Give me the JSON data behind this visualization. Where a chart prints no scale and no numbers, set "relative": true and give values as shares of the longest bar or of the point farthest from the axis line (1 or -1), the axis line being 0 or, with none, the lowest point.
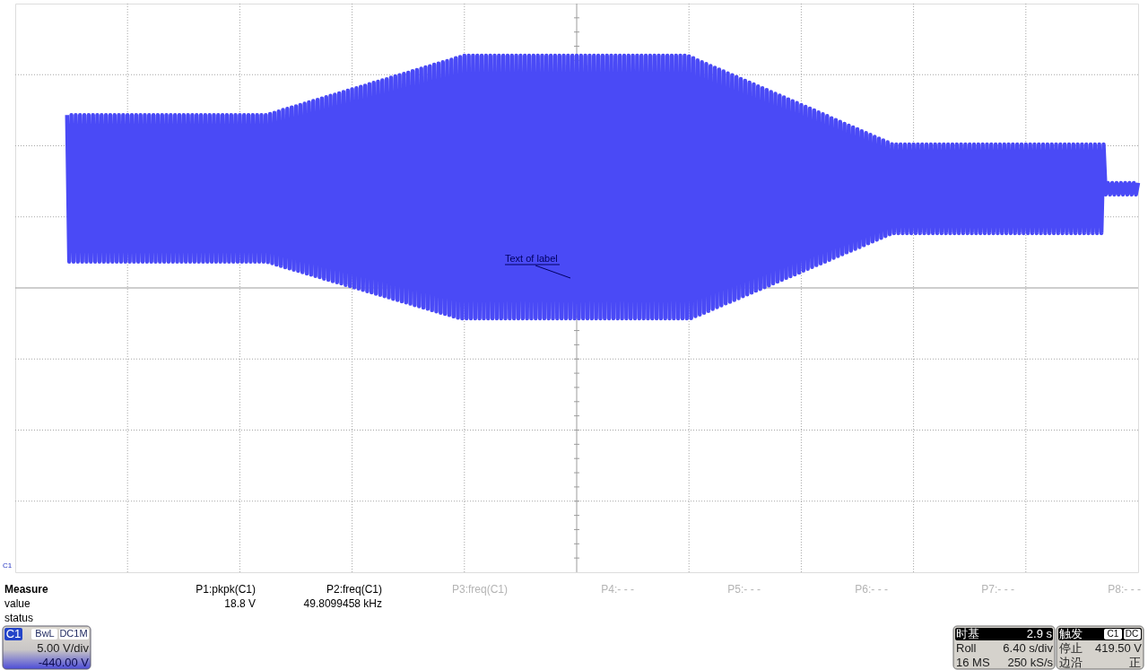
{
  "chart_data": {
    "type": "line",
    "relative": true,
    "grid": true,
    "tick_labels": false,
    "categories": [
      null,
      null,
      null,
      null,
      null,
      null,
      null,
      null,
      null,
      null,
      null,
      null,
      null,
      null,
      null,
      null,
      null,
      null,
      null,
      null,
      null,
      null,
      null,
      null,
      null,
      null,
      null,
      null,
      null,
      null,
      null,
      null,
      null,
      null,
      null,
      null,
      null,
      null,
      null,
      null,
      null,
      null,
      null,
      null,
      null,
      null,
      null,
      null,
      null,
      null,
      null,
      null,
      null,
      null,
      null,
      null,
      null,
      null,
      null,
      null,
      null,
      null,
      null,
      null,
      null,
      null,
      null,
      null,
      null,
      null,
      null,
      null,
      null,
      null,
      null,
      null,
      null,
      null,
      null,
      null,
      null,
      null,
      null,
      null,
      null,
      null,
      null,
      null,
      null,
      null,
      null,
      null,
      null,
      null,
      null,
      null,
      null,
      null,
      null,
      null,
      null,
      null,
      null,
      null,
      null,
      null,
      null,
      null,
      null,
      null,
      null,
      null,
      null,
      null,
      null,
      null,
      null,
      null,
      null,
      null,
      null,
      null,
      null,
      null,
      null,
      null,
      null,
      null,
      null,
      null,
      null,
      null,
      null,
      null,
      null,
      null,
      null,
      null,
      null,
      null,
      null,
      null,
      null,
      null,
      null,
      null,
      null,
      null,
      null,
      null,
      null,
      null,
      null,
      null,
      null,
      null,
      null,
      null,
      null,
      null,
      null,
      null,
      null,
      null,
      null,
      null,
      null,
      null,
      null,
      null,
      null,
      null,
      null,
      null,
      null,
      null,
      null,
      null,
      null,
      null,
      null,
      null,
      null,
      null,
      null,
      null,
      null,
      null,
      null,
      null,
      null,
      null,
      null,
      null,
      null,
      null,
      null,
      null,
      null,
      null,
      null,
      null,
      null,
      null,
      null,
      null,
      null,
      null,
      null,
      null,
      null,
      null,
      null,
      null,
      null,
      null,
      null,
      null,
      null,
      null,
      null,
      null,
      null,
      null,
      null,
      null,
      null,
      null,
      null,
      null,
      null,
      null,
      null,
      null,
      null,
      null,
      null,
      null,
      null,
      null,
      null,
      null,
      null,
      null,
      null,
      null,
      null,
      null,
      null,
      null,
      null,
      null,
      null,
      null,
      null,
      null,
      null,
      null,
      null,
      null,
      null,
      null,
      null,
      null,
      null,
      null,
      null,
      null,
      null,
      null,
      null,
      null,
      null,
      null,
      null,
      null,
      null,
      null,
      null,
      null,
      null,
      null,
      null,
      null,
      null,
      null,
      null,
      null,
      null,
      null,
      null,
      null,
      null,
      null,
      null,
      null,
      null,
      null,
      null,
      null,
      null,
      null,
      null,
      null,
      null,
      null,
      null,
      null,
      null,
      null,
      null,
      null,
      null,
      null,
      null,
      null,
      null,
      null,
      null,
      null,
      null,
      null,
      null,
      null,
      null,
      null,
      null,
      null,
      null,
      null,
      null,
      null,
      null,
      null,
      null,
      null,
      null,
      null,
      null,
      null,
      null,
      null,
      null,
      null,
      null,
      null,
      null,
      null,
      null,
      null,
      null,
      null,
      null,
      null,
      null,
      null,
      null,
      null,
      null,
      null,
      null,
      null,
      null,
      null,
      null,
      null,
      null,
      null,
      null,
      null,
      null,
      null,
      null,
      null,
      null,
      null,
      null,
      null,
      null,
      null,
      null,
      null,
      null,
      null,
      null,
      null,
      null,
      null,
      null,
      null,
      null,
      null,
      null,
      null,
      null,
      null,
      null,
      null,
      null,
      null,
      null,
      null,
      null,
      null,
      null,
      null,
      null,
      null,
      null,
      null,
      null,
      null,
      null,
      null,
      null,
      null,
      null,
      null,
      null,
      null,
      null,
      null,
      null,
      null,
      null,
      null,
      null,
      null,
      null,
      null,
      null,
      null,
      null,
      null,
      null,
      null,
      null,
      null,
      null,
      null,
      null,
      null,
      null,
      null,
      null,
      null,
      null,
      null,
      null,
      null,
      null,
      null,
      null,
      null,
      null,
      null,
      null,
      null,
      null,
      null,
      null,
      null,
      null,
      null,
      null,
      null,
      null,
      null,
      null,
      null,
      null,
      null,
      null,
      null,
      null,
      null,
      null,
      null,
      null,
      null,
      null,
      null,
      null,
      null,
      null,
      null,
      null,
      null,
      null,
      null,
      null,
      null,
      null,
      null,
      null,
      null,
      null,
      null,
      null,
      null,
      null,
      null,
      null,
      null,
      null,
      null,
      null,
      null,
      null,
      null,
      null,
      null,
      null,
      null,
      null,
      null,
      null,
      null,
      null,
      null,
      null
    ],
    "color": "#4a4af6",
    "values": [
      null,
      null,
      null,
      null,
      null,
      null,
      null,
      null,
      null,
      null,
      null,
      null,
      null,
      null,
      null,
      null,
      null,
      null,
      null,
      null,
      null,
      null,
      null,
      null,
      0.744,
      0.113,
      0.744,
      0.113,
      0.744,
      0.113,
      0.744,
      0.113,
      0.744,
      0.113,
      0.744,
      0.113,
      0.744,
      0.113,
      0.744,
      0.113,
      0.744,
      0.113,
      0.744,
      0.113,
      0.744,
      0.113,
      0.744,
      0.113,
      0.744,
      0.113,
      0.744,
      0.113,
      0.744,
      0.113,
      0.744,
      0.113,
      0.744,
      0.113,
      0.744,
      0.113,
      0.744,
      0.113,
      0.744,
      0.113,
      0.744,
      0.113,
      0.744,
      0.113,
      0.744,
      0.113,
      0.744,
      0.113,
      0.744,
      0.113,
      0.744,
      0.113,
      0.744,
      0.113,
      0.744,
      0.113,
      0.744,
      0.113,
      0.744,
      0.113,
      0.744,
      0.113,
      0.744,
      0.113,
      0.744,
      0.113,
      0.744,
      0.113,
      0.744,
      0.113,
      0.744,
      0.113,
      0.744,
      0.113,
      0.744,
      0.113,
      0.744,
      0.113,
      0.744,
      0.113,
      0.744,
      0.113,
      0.744,
      0.113,
      0.744,
      0.113,
      0.744,
      0.113,
      0.744,
      0.113,
      0.744,
      0.113,
      0.744,
      0.111,
      0.749,
      0.106,
      0.754,
      0.1,
      0.76,
      0.095,
      0.766,
      0.089,
      0.771,
      0.084,
      0.777,
      0.078,
      0.782,
      0.073,
      0.788,
      0.068,
      0.793,
      0.062,
      0.799,
      0.057,
      0.805,
      0.051,
      0.81,
      0.046,
      0.816,
      0.04,
      0.821,
      0.035,
      0.827,
      0.029,
      0.832,
      0.024,
      0.838,
      0.019,
      0.844,
      0.013,
      0.849,
      0.008,
      0.855,
      0.002,
      0.86,
      -0.003,
      0.866,
      -0.009,
      0.871,
      -0.014,
      0.877,
      -0.019,
      0.883,
      -0.025,
      0.888,
      -0.03,
      0.894,
      -0.036,
      0.899,
      -0.041,
      0.905,
      -0.047,
      0.911,
      -0.052,
      0.916,
      -0.058,
      0.922,
      -0.063,
      0.927,
      -0.068,
      0.933,
      -0.074,
      0.938,
      -0.079,
      0.944,
      -0.085,
      0.95,
      -0.09,
      0.955,
      -0.096,
      0.961,
      -0.101,
      0.966,
      -0.107,
      0.972,
      -0.112,
      0.977,
      -0.117,
      0.983,
      -0.123,
      0.989,
      -0.128,
      0.994,
      -0.131,
      1,
      -0.131,
      1,
      -0.131,
      1,
      -0.131,
      1,
      -0.131,
      1,
      -0.131,
      1,
      -0.131,
      1,
      -0.131,
      1,
      -0.131,
      1,
      -0.131,
      1,
      -0.131,
      1,
      -0.131,
      1,
      -0.131,
      1,
      -0.131,
      1,
      -0.131,
      1,
      -0.131,
      1,
      -0.131,
      1,
      -0.131,
      1,
      -0.131,
      1,
      -0.131,
      1,
      -0.131,
      1,
      -0.131,
      1,
      -0.131,
      1,
      -0.131,
      1,
      -0.131,
      1,
      -0.131,
      1,
      -0.131,
      1,
      -0.131,
      1,
      -0.131,
      1,
      -0.131,
      1,
      -0.131,
      1,
      -0.131,
      1,
      -0.131,
      1,
      -0.131,
      1,
      -0.131,
      1,
      -0.131,
      1,
      -0.131,
      1,
      -0.131,
      1,
      -0.131,
      1,
      -0.131,
      1,
      -0.131,
      1,
      -0.131,
      1,
      -0.131,
      1,
      -0.131,
      1,
      -0.131,
      1,
      -0.131,
      1,
      -0.131,
      1,
      -0.131,
      1,
      -0.131,
      1,
      -0.131,
      1,
      -0.131,
      1,
      -0.131,
      1,
      -0.131,
      0.997,
      -0.13,
      0.989,
      -0.122,
      0.98,
      -0.115,
      0.972,
      -0.107,
      0.964,
      -0.099,
      0.956,
      -0.091,
      0.948,
      -0.083,
      0.94,
      -0.075,
      0.932,
      -0.067,
      0.924,
      -0.06,
      0.916,
      -0.052,
      0.908,
      -0.044,
      0.9,
      -0.036,
      0.892,
      -0.028,
      0.884,
      -0.02,
      0.876,
      -0.012,
      0.868,
      -0.005,
      0.86,
      0.003,
      0.852,
      0.011,
      0.844,
      0.019,
      0.836,
      0.027,
      0.828,
      0.035,
      0.82,
      0.043,
      0.812,
      0.05,
      0.804,
      0.058,
      0.796,
      0.066,
      0.788,
      0.074,
      0.78,
      0.082,
      0.772,
      0.09,
      0.764,
      0.098,
      0.756,
      0.105,
      0.748,
      0.113,
      0.74,
      0.121,
      0.731,
      0.129,
      0.723,
      0.137,
      0.715,
      0.145,
      0.707,
      0.153,
      0.699,
      0.16,
      0.691,
      0.168,
      0.683,
      0.176,
      0.675,
      0.184,
      0.667,
      0.192,
      0.659,
      0.2,
      0.651,
      0.208,
      0.643,
      0.215,
      0.635,
      0.223,
      0.627,
      0.231,
      0.619,
      0.236,
      0.618,
      0.236,
      0.618,
      0.236,
      0.618,
      0.236,
      0.618,
      0.236,
      0.618,
      0.236,
      0.618,
      0.236,
      0.618,
      0.236,
      0.618,
      0.236,
      0.618,
      0.236,
      0.618,
      0.236,
      0.618,
      0.236,
      0.618,
      0.236,
      0.618,
      0.236,
      0.618,
      0.236,
      0.618,
      0.236,
      0.618,
      0.236,
      0.618,
      0.236,
      0.618,
      0.236,
      0.618,
      0.236,
      0.618,
      0.236,
      0.618,
      0.236,
      0.618,
      0.236,
      0.618,
      0.236,
      0.618,
      0.236,
      0.618,
      0.236,
      0.618,
      0.236,
      0.618,
      0.236,
      0.618,
      0.236,
      0.618,
      0.236,
      0.618,
      0.236,
      0.618,
      0.236,
      0.618,
      0.236,
      0.618,
      0.236,
      0.618,
      0.236,
      0.618,
      0.236,
      0.618,
      0.236,
      0.618,
      0.236,
      0.618,
      0.236,
      0.618,
      0.236,
      0.618,
      0.236,
      0.618,
      0.236,
      0.618,
      0.236,
      0.618,
      0.236,
      0.618,
      0.236,
      0.618,
      0.236,
      0.618,
      0.236,
      0.618,
      0.236,
      0.618,
      0.236,
      0.618,
      0.402,
      0.452,
      0.402,
      0.452,
      0.402,
      0.452,
      0.402,
      0.452,
      0.402,
      0.452,
      0.402,
      0.452,
      0.402,
      0.452,
      0.402,
      0.452
    ],
    "annotations": [
      "Text of label",
      "C1",
      "Measure",
      "value",
      "status",
      "P1:pkpk(C1)",
      "18.8 V",
      "P2:freq(C1)",
      "49.8099458 kHz",
      "P3:freq(C1)",
      "P4:- - -",
      "P5:- - -",
      "P6:- - -",
      "P7:- - -",
      "P8:- - -",
      "C1",
      "BwL",
      "DC1M",
      "5.00 V/div",
      "-440.00 V",
      "时基",
      "2.9 s",
      "Roll",
      "6.40 s/div",
      "16 MS",
      "250 kS/s",
      "触发",
      "C1",
      "DC",
      "停止",
      "419.50 V",
      "边沿",
      "正"
    ]
  }
}
